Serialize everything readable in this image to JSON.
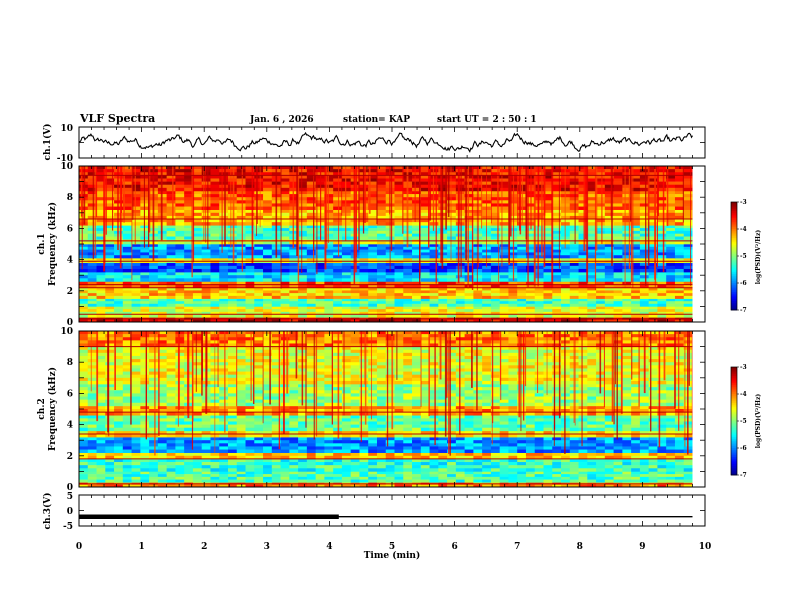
{
  "header": {
    "title": "VLF Spectra",
    "date": "Jan. 6 , 2026",
    "station": "station= KAP",
    "start": "start  UT =   2  : 50 : 1"
  },
  "chart_data": [
    {
      "type": "line",
      "panel": "ch1-waveform",
      "ylabel": "ch.1(V)",
      "ylim": [
        -10,
        10
      ],
      "ytick_labels": [
        "10",
        "-10"
      ],
      "xlim": [
        0,
        10
      ],
      "x_end": 9.8,
      "trace_description_values": {
        "mean": 0,
        "amplitude": 4.5
      }
    },
    {
      "type": "heatmap",
      "panel": "ch1-spectrogram",
      "ylabel": "ch.1 Frequency (kHz)",
      "ylabel_top": "ch.1",
      "ylabel_bottom": "Frequency  (kHz)",
      "ylim": [
        0,
        10
      ],
      "ytick_labels": [
        "0",
        "2",
        "4",
        "6",
        "8",
        "10"
      ],
      "xlim": [
        0,
        9.8
      ],
      "colorbar": {
        "label": "log(PSD)(V²/Hz)",
        "ticks": [
          "-3",
          "-4",
          "-5",
          "-6",
          "-7"
        ],
        "range": [
          -7,
          -3
        ]
      },
      "bands": [
        {
          "f0": 0,
          "f1": 0.3,
          "level": -3.3
        },
        {
          "f0": 0.3,
          "f1": 1.0,
          "level": -4.6
        },
        {
          "f0": 1.0,
          "f1": 1.5,
          "level": -5.2
        },
        {
          "f0": 1.5,
          "f1": 2.2,
          "level": -4.3
        },
        {
          "f0": 2.2,
          "f1": 2.6,
          "level": -3.8
        },
        {
          "f0": 2.6,
          "f1": 3.2,
          "level": -5.6
        },
        {
          "f0": 3.2,
          "f1": 3.8,
          "level": -6.2
        },
        {
          "f0": 3.8,
          "f1": 4.1,
          "level": -4.6
        },
        {
          "f0": 4.1,
          "f1": 5.0,
          "level": -5.9
        },
        {
          "f0": 5.0,
          "f1": 5.3,
          "level": -4.7
        },
        {
          "f0": 5.3,
          "f1": 6.2,
          "level": -5.2
        },
        {
          "f0": 6.2,
          "f1": 7.2,
          "level": -4.2
        },
        {
          "f0": 7.2,
          "f1": 8.4,
          "level": -3.9
        },
        {
          "f0": 8.4,
          "f1": 10.0,
          "level": -3.5
        }
      ],
      "lines_khz": [
        0.2,
        0.5,
        2.2,
        2.4,
        3.9,
        5.2,
        6.6,
        9.4
      ]
    },
    {
      "type": "heatmap",
      "panel": "ch2-spectrogram",
      "ylabel": "ch.2 Frequency (kHz)",
      "ylabel_top": "ch.2",
      "ylabel_bottom": "Frequency  (kHz)",
      "ylim": [
        0,
        10
      ],
      "ytick_labels": [
        "0",
        "2",
        "4",
        "6",
        "8",
        "10"
      ],
      "xlim": [
        0,
        9.8
      ],
      "colorbar": {
        "label": "log(PSD)(V²/Hz)",
        "ticks": [
          "-3",
          "-4",
          "-5",
          "-6",
          "-7"
        ],
        "range": [
          -7,
          -3
        ]
      },
      "bands": [
        {
          "f0": 0,
          "f1": 0.3,
          "level": -4.0
        },
        {
          "f0": 0.3,
          "f1": 1.0,
          "level": -5.2
        },
        {
          "f0": 1.0,
          "f1": 1.8,
          "level": -5.3
        },
        {
          "f0": 1.8,
          "f1": 2.2,
          "level": -4.3
        },
        {
          "f0": 2.2,
          "f1": 3.2,
          "level": -5.9
        },
        {
          "f0": 3.2,
          "f1": 3.6,
          "level": -4.4
        },
        {
          "f0": 3.6,
          "f1": 4.6,
          "level": -5.1
        },
        {
          "f0": 4.6,
          "f1": 5.2,
          "level": -4.1
        },
        {
          "f0": 5.2,
          "f1": 6.6,
          "level": -4.9
        },
        {
          "f0": 6.6,
          "f1": 9.0,
          "level": -4.6
        },
        {
          "f0": 9.0,
          "f1": 10.0,
          "level": -4.0
        }
      ],
      "lines_khz": [
        0.2,
        1.8,
        3.4,
        4.8,
        9.0
      ]
    },
    {
      "type": "line",
      "panel": "ch3-waveform",
      "ylabel": "ch.3(V)",
      "ylim": [
        -5,
        5
      ],
      "ytick_labels": [
        "5",
        "0",
        "-5"
      ],
      "xlim": [
        0,
        10
      ],
      "baseline": -2,
      "thick_segment": {
        "x0": 0,
        "x1": 4.15
      },
      "x_end": 9.8,
      "xlabel": "Time  (min)",
      "xtick_labels": [
        "0",
        "1",
        "2",
        "3",
        "4",
        "5",
        "6",
        "7",
        "8",
        "9",
        "10"
      ]
    }
  ]
}
